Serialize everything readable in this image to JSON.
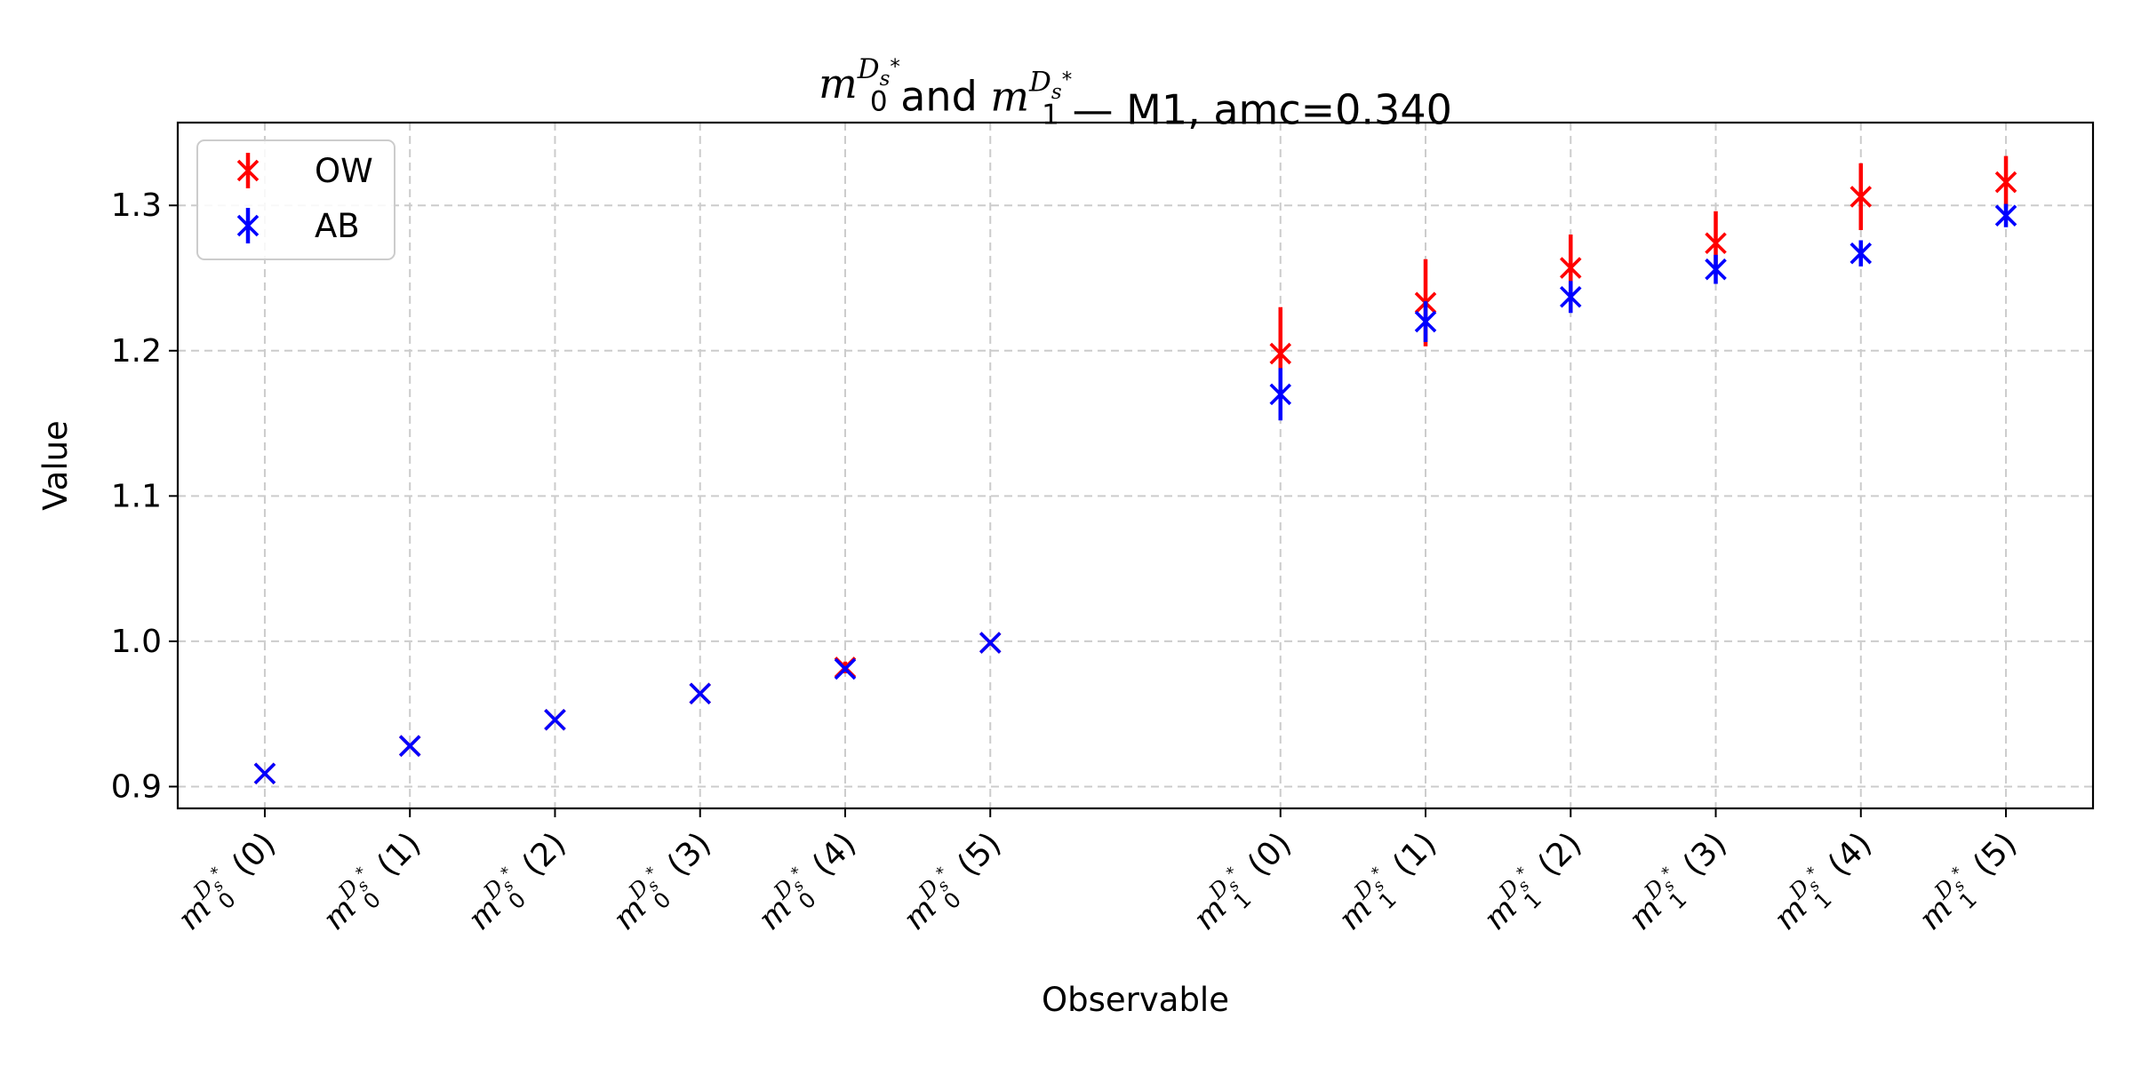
{
  "chart_data": {
    "type": "scatter",
    "title": "m0^{D_s^*} and m1^{D_s^*} — M1, amc=0.340",
    "xlabel": "Observable",
    "ylabel": "Value",
    "ylim": [
      0.885,
      1.357
    ],
    "yticks": [
      0.9,
      1.0,
      1.1,
      1.2,
      1.3
    ],
    "grid": true,
    "legend_position": "upper-left",
    "categories": [
      {
        "label": "m0^{D_s^*} (0)",
        "x": 0
      },
      {
        "label": "m0^{D_s^*} (1)",
        "x": 1
      },
      {
        "label": "m0^{D_s^*} (2)",
        "x": 2
      },
      {
        "label": "m0^{D_s^*} (3)",
        "x": 3
      },
      {
        "label": "m0^{D_s^*} (4)",
        "x": 4
      },
      {
        "label": "m0^{D_s^*} (5)",
        "x": 5
      },
      {
        "label": "m1^{D_s^*} (0)",
        "x": 7
      },
      {
        "label": "m1^{D_s^*} (1)",
        "x": 8
      },
      {
        "label": "m1^{D_s^*} (2)",
        "x": 9
      },
      {
        "label": "m1^{D_s^*} (3)",
        "x": 10
      },
      {
        "label": "m1^{D_s^*} (4)",
        "x": 11
      },
      {
        "label": "m1^{D_s^*} (5)",
        "x": 12
      }
    ],
    "series": [
      {
        "name": "OW",
        "color": "#ff0000",
        "x": [
          0,
          1,
          2,
          3,
          4,
          5,
          7,
          8,
          9,
          10,
          11,
          12
        ],
        "values": [
          0.909,
          0.928,
          0.946,
          0.964,
          0.982,
          0.999,
          1.198,
          1.233,
          1.257,
          1.274,
          1.306,
          1.316
        ],
        "errors": [
          0.0,
          0.0,
          0.0,
          0.0,
          0.004,
          0.002,
          0.032,
          0.03,
          0.023,
          0.022,
          0.023,
          0.018
        ]
      },
      {
        "name": "AB",
        "color": "#0000ff",
        "x": [
          0,
          1,
          2,
          3,
          4,
          5,
          7,
          8,
          9,
          10,
          11,
          12
        ],
        "values": [
          0.909,
          0.928,
          0.946,
          0.964,
          0.981,
          0.999,
          1.17,
          1.22,
          1.237,
          1.256,
          1.267,
          1.293
        ],
        "errors": [
          0.0,
          0.0,
          0.0,
          0.0,
          0.002,
          0.001,
          0.018,
          0.014,
          0.011,
          0.01,
          0.009,
          0.008
        ]
      }
    ]
  }
}
